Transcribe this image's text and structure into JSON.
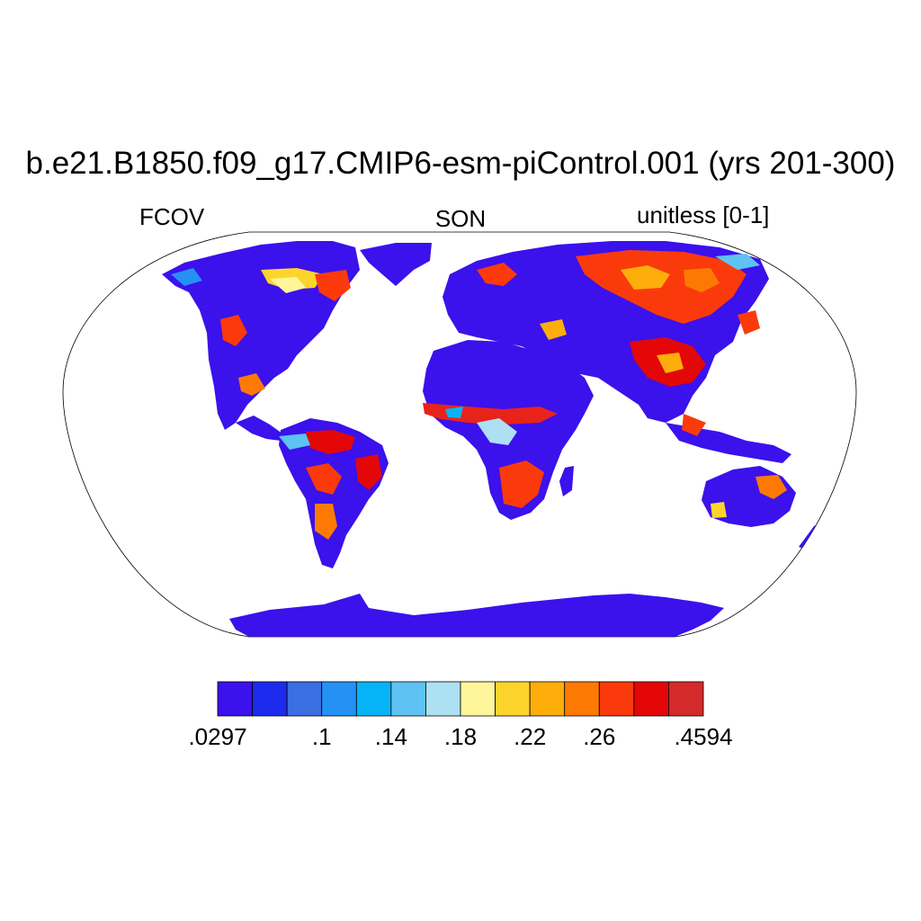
{
  "title": "b.e21.B1850.f09_g17.CMIP6-esm-piControl.001 (yrs 201-300)",
  "left_label": "FCOV",
  "center_label": "SON",
  "right_label": "unitless [0-1]",
  "colorbar": {
    "colors": [
      "#3b11ec",
      "#1c2bee",
      "#3b6ee0",
      "#2591f5",
      "#06b3f7",
      "#5ec3f2",
      "#ade0f3",
      "#fff59a",
      "#fdd42c",
      "#fdae0b",
      "#fc7a04",
      "#fb3a0c",
      "#e30707",
      "#d42a2a"
    ],
    "tick_labels": [
      {
        "boundary": 0,
        "text": ".0297"
      },
      {
        "boundary": 3,
        "text": ".1"
      },
      {
        "boundary": 5,
        "text": ".14"
      },
      {
        "boundary": 7,
        "text": ".18"
      },
      {
        "boundary": 9,
        "text": ".22"
      },
      {
        "boundary": 11,
        "text": ".26"
      },
      {
        "boundary": 14,
        "text": ".4594"
      }
    ]
  },
  "map": {
    "projection": "Robinson",
    "ocean_color": "#ffffff",
    "low_color": "#3b11ec",
    "high_color": "#e8231a"
  }
}
